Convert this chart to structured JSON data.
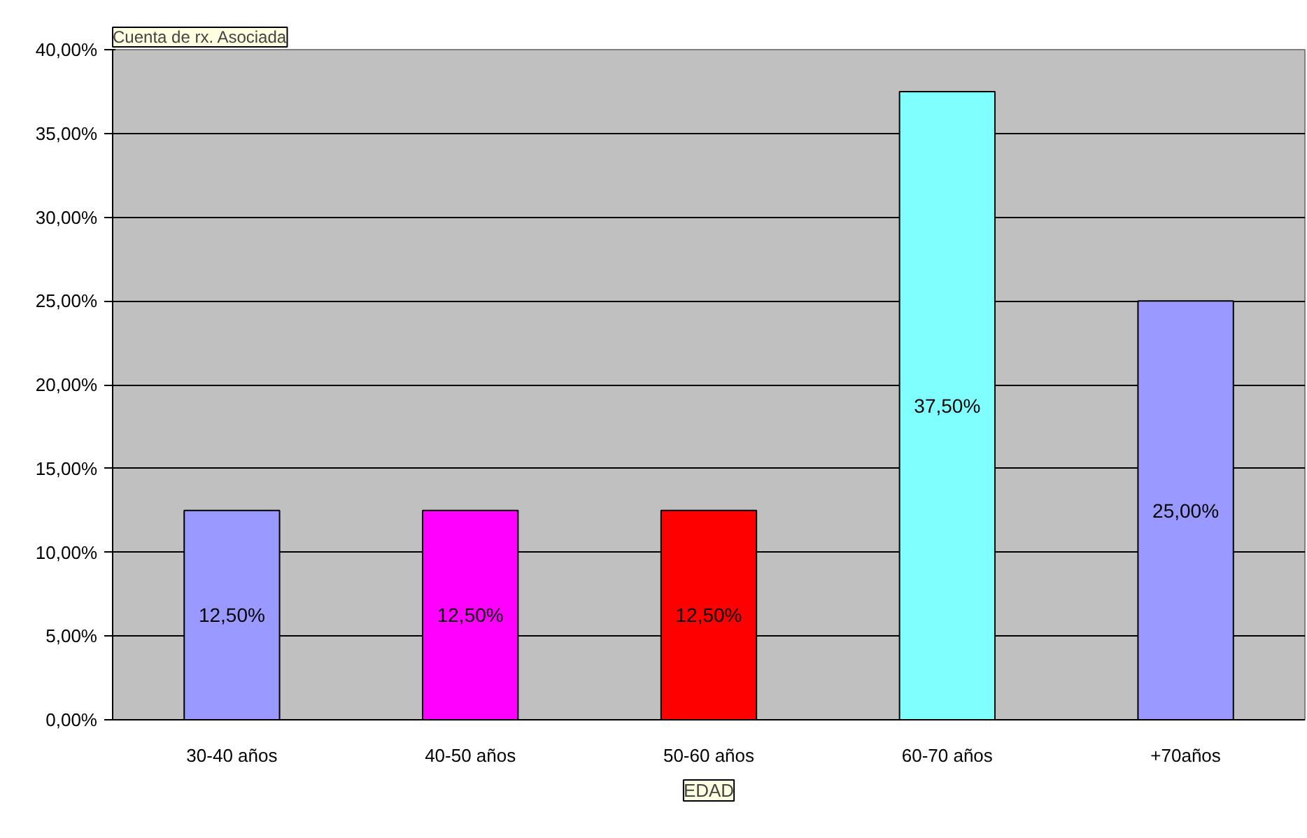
{
  "chart_data": {
    "type": "bar",
    "title": "Cuenta de rx. Asociada",
    "xlabel": "EDAD",
    "categories": [
      "30-40 años",
      "40-50 años",
      "50-60 años",
      "60-70 años",
      "+70años"
    ],
    "values": [
      12.5,
      12.5,
      12.5,
      37.5,
      25
    ],
    "colors": [
      "#9999ff",
      "#ff00ff",
      "#ff0000",
      "#80ffff",
      "#9999ff"
    ],
    "value_labels": [
      "12,50%",
      "12,50%",
      "12,50%",
      "37,50%",
      "25,00%"
    ],
    "ylim": [
      0,
      40
    ],
    "yticks": [
      {
        "value": 0,
        "label": "0,00%"
      },
      {
        "value": 5,
        "label": "5,00%"
      },
      {
        "value": 10,
        "label": "10,00%"
      },
      {
        "value": 15,
        "label": "15,00%"
      },
      {
        "value": 20,
        "label": "20,00%"
      },
      {
        "value": 25,
        "label": "25,00%"
      },
      {
        "value": 30,
        "label": "30,00%"
      },
      {
        "value": 35,
        "label": "35,00%"
      },
      {
        "value": 40,
        "label": "40,00%"
      }
    ],
    "grid": "y"
  }
}
